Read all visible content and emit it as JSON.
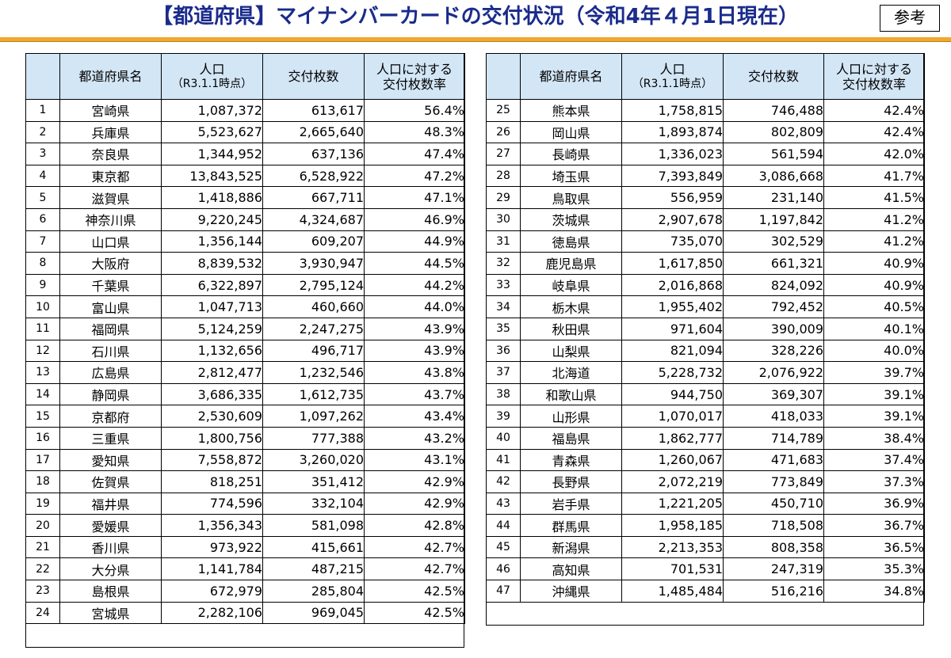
{
  "title": "【都道府県】マイナンバーカードの交付状況（令和4年４月1日現在）",
  "badge": "参考",
  "headers": {
    "name": "都道府県名",
    "population": "人口",
    "population_sub": "（R3.1.1時点）",
    "issued": "交付枚数",
    "rate_line1": "人口に対する",
    "rate_line2": "交付枚数率"
  },
  "left_rows": [
    {
      "rank": "1",
      "name": "宮崎県",
      "population": "1,087,372",
      "issued": "613,617",
      "rate": "56.4%"
    },
    {
      "rank": "2",
      "name": "兵庫県",
      "population": "5,523,627",
      "issued": "2,665,640",
      "rate": "48.3%"
    },
    {
      "rank": "3",
      "name": "奈良県",
      "population": "1,344,952",
      "issued": "637,136",
      "rate": "47.4%"
    },
    {
      "rank": "4",
      "name": "東京都",
      "population": "13,843,525",
      "issued": "6,528,922",
      "rate": "47.2%"
    },
    {
      "rank": "5",
      "name": "滋賀県",
      "population": "1,418,886",
      "issued": "667,711",
      "rate": "47.1%"
    },
    {
      "rank": "6",
      "name": "神奈川県",
      "population": "9,220,245",
      "issued": "4,324,687",
      "rate": "46.9%"
    },
    {
      "rank": "7",
      "name": "山口県",
      "population": "1,356,144",
      "issued": "609,207",
      "rate": "44.9%"
    },
    {
      "rank": "8",
      "name": "大阪府",
      "population": "8,839,532",
      "issued": "3,930,947",
      "rate": "44.5%"
    },
    {
      "rank": "9",
      "name": "千葉県",
      "population": "6,322,897",
      "issued": "2,795,124",
      "rate": "44.2%"
    },
    {
      "rank": "10",
      "name": "富山県",
      "population": "1,047,713",
      "issued": "460,660",
      "rate": "44.0%"
    },
    {
      "rank": "11",
      "name": "福岡県",
      "population": "5,124,259",
      "issued": "2,247,275",
      "rate": "43.9%"
    },
    {
      "rank": "12",
      "name": "石川県",
      "population": "1,132,656",
      "issued": "496,717",
      "rate": "43.9%"
    },
    {
      "rank": "13",
      "name": "広島県",
      "population": "2,812,477",
      "issued": "1,232,546",
      "rate": "43.8%"
    },
    {
      "rank": "14",
      "name": "静岡県",
      "population": "3,686,335",
      "issued": "1,612,735",
      "rate": "43.7%"
    },
    {
      "rank": "15",
      "name": "京都府",
      "population": "2,530,609",
      "issued": "1,097,262",
      "rate": "43.4%"
    },
    {
      "rank": "16",
      "name": "三重県",
      "population": "1,800,756",
      "issued": "777,388",
      "rate": "43.2%"
    },
    {
      "rank": "17",
      "name": "愛知県",
      "population": "7,558,872",
      "issued": "3,260,020",
      "rate": "43.1%"
    },
    {
      "rank": "18",
      "name": "佐賀県",
      "population": "818,251",
      "issued": "351,412",
      "rate": "42.9%"
    },
    {
      "rank": "19",
      "name": "福井県",
      "population": "774,596",
      "issued": "332,104",
      "rate": "42.9%"
    },
    {
      "rank": "20",
      "name": "愛媛県",
      "population": "1,356,343",
      "issued": "581,098",
      "rate": "42.8%"
    },
    {
      "rank": "21",
      "name": "香川県",
      "population": "973,922",
      "issued": "415,661",
      "rate": "42.7%"
    },
    {
      "rank": "22",
      "name": "大分県",
      "population": "1,141,784",
      "issued": "487,215",
      "rate": "42.7%"
    },
    {
      "rank": "23",
      "name": "島根県",
      "population": "672,979",
      "issued": "285,804",
      "rate": "42.5%"
    },
    {
      "rank": "24",
      "name": "宮城県",
      "population": "2,282,106",
      "issued": "969,045",
      "rate": "42.5%"
    }
  ],
  "right_rows": [
    {
      "rank": "25",
      "name": "熊本県",
      "population": "1,758,815",
      "issued": "746,488",
      "rate": "42.4%"
    },
    {
      "rank": "26",
      "name": "岡山県",
      "population": "1,893,874",
      "issued": "802,809",
      "rate": "42.4%"
    },
    {
      "rank": "27",
      "name": "長崎県",
      "population": "1,336,023",
      "issued": "561,594",
      "rate": "42.0%"
    },
    {
      "rank": "28",
      "name": "埼玉県",
      "population": "7,393,849",
      "issued": "3,086,668",
      "rate": "41.7%"
    },
    {
      "rank": "29",
      "name": "鳥取県",
      "population": "556,959",
      "issued": "231,140",
      "rate": "41.5%"
    },
    {
      "rank": "30",
      "name": "茨城県",
      "population": "2,907,678",
      "issued": "1,197,842",
      "rate": "41.2%"
    },
    {
      "rank": "31",
      "name": "徳島県",
      "population": "735,070",
      "issued": "302,529",
      "rate": "41.2%"
    },
    {
      "rank": "32",
      "name": "鹿児島県",
      "population": "1,617,850",
      "issued": "661,321",
      "rate": "40.9%"
    },
    {
      "rank": "33",
      "name": "岐阜県",
      "population": "2,016,868",
      "issued": "824,092",
      "rate": "40.9%"
    },
    {
      "rank": "34",
      "name": "栃木県",
      "population": "1,955,402",
      "issued": "792,452",
      "rate": "40.5%"
    },
    {
      "rank": "35",
      "name": "秋田県",
      "population": "971,604",
      "issued": "390,009",
      "rate": "40.1%"
    },
    {
      "rank": "36",
      "name": "山梨県",
      "population": "821,094",
      "issued": "328,226",
      "rate": "40.0%"
    },
    {
      "rank": "37",
      "name": "北海道",
      "population": "5,228,732",
      "issued": "2,076,922",
      "rate": "39.7%"
    },
    {
      "rank": "38",
      "name": "和歌山県",
      "population": "944,750",
      "issued": "369,307",
      "rate": "39.1%"
    },
    {
      "rank": "39",
      "name": "山形県",
      "population": "1,070,017",
      "issued": "418,033",
      "rate": "39.1%"
    },
    {
      "rank": "40",
      "name": "福島県",
      "population": "1,862,777",
      "issued": "714,789",
      "rate": "38.4%"
    },
    {
      "rank": "41",
      "name": "青森県",
      "population": "1,260,067",
      "issued": "471,683",
      "rate": "37.4%"
    },
    {
      "rank": "42",
      "name": "長野県",
      "population": "2,072,219",
      "issued": "773,849",
      "rate": "37.3%"
    },
    {
      "rank": "43",
      "name": "岩手県",
      "population": "1,221,205",
      "issued": "450,710",
      "rate": "36.9%"
    },
    {
      "rank": "44",
      "name": "群馬県",
      "population": "1,958,185",
      "issued": "718,508",
      "rate": "36.7%"
    },
    {
      "rank": "45",
      "name": "新潟県",
      "population": "2,213,353",
      "issued": "808,358",
      "rate": "36.5%"
    },
    {
      "rank": "46",
      "name": "高知県",
      "population": "701,531",
      "issued": "247,319",
      "rate": "35.3%"
    },
    {
      "rank": "47",
      "name": "沖縄県",
      "population": "1,485,484",
      "issued": "516,216",
      "rate": "34.8%"
    }
  ],
  "colors": {
    "title": "#1a2b8c",
    "header_bg": "#d3e6f6",
    "rule": "#f0a830"
  }
}
